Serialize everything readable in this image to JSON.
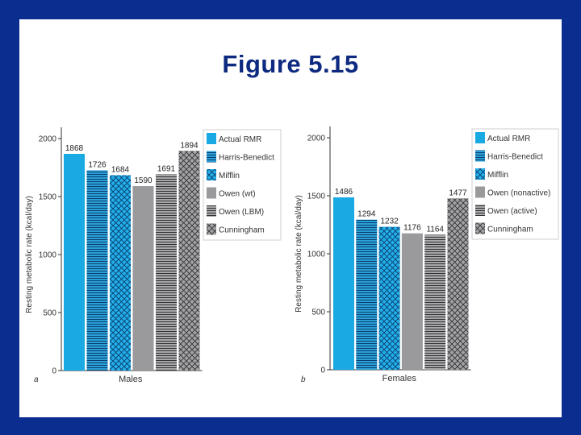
{
  "slide": {
    "title": "Figure 5.15",
    "background_color": "#0a2d8f",
    "title_color": "#0d2a80"
  },
  "chart_data": [
    {
      "type": "bar",
      "panel_label": "a",
      "title": "",
      "xlabel": "Males",
      "ylabel": "Resting metabolic rate (kcal/day)",
      "ylim": [
        0,
        2000
      ],
      "yticks": [
        0,
        500,
        1000,
        1500,
        2000
      ],
      "grid": false,
      "legend_position": "top-right",
      "series": [
        {
          "name": "Actual RMR",
          "value": 1868,
          "label": "1868",
          "color": "#19a9e3",
          "pattern": "solid"
        },
        {
          "name": "Harris-Benedict",
          "value": 1726,
          "label": "1726",
          "color": "#1f8fc4",
          "pattern": "horizontal-lines"
        },
        {
          "name": "Mifflin",
          "value": 1684,
          "label": "1684",
          "color": "#1aa3dc",
          "pattern": "crosshatch"
        },
        {
          "name": "Owen (wt)",
          "value": 1590,
          "label": "1590",
          "color": "#9a9a9d",
          "pattern": "solid"
        },
        {
          "name": "Owen (LBM)",
          "value": 1691,
          "label": "1691",
          "color": "#8e8e91",
          "pattern": "horizontal-lines"
        },
        {
          "name": "Cunningham",
          "value": 1894,
          "label": "1894",
          "color": "#8f8f92",
          "pattern": "crosshatch"
        }
      ]
    },
    {
      "type": "bar",
      "panel_label": "b",
      "title": "",
      "xlabel": "Females",
      "ylabel": "Resting metabolic rate (kcal/day)",
      "ylim": [
        0,
        2000
      ],
      "yticks": [
        0,
        500,
        1000,
        1500,
        2000
      ],
      "grid": false,
      "legend_position": "top-right",
      "series": [
        {
          "name": "Actual RMR",
          "value": 1486,
          "label": "1486",
          "color": "#19a9e3",
          "pattern": "solid"
        },
        {
          "name": "Harris-Benedict",
          "value": 1294,
          "label": "1294",
          "color": "#1f8fc4",
          "pattern": "horizontal-lines"
        },
        {
          "name": "Mifflin",
          "value": 1232,
          "label": "1232",
          "color": "#1aa3dc",
          "pattern": "crosshatch"
        },
        {
          "name": "Owen (nonactive)",
          "value": 1176,
          "label": "1176",
          "color": "#9a9a9d",
          "pattern": "solid"
        },
        {
          "name": "Owen (active)",
          "value": 1164,
          "label": "1164",
          "color": "#8e8e91",
          "pattern": "horizontal-lines"
        },
        {
          "name": "Cunningham",
          "value": 1477,
          "label": "1477",
          "color": "#8f8f92",
          "pattern": "crosshatch"
        }
      ]
    }
  ]
}
